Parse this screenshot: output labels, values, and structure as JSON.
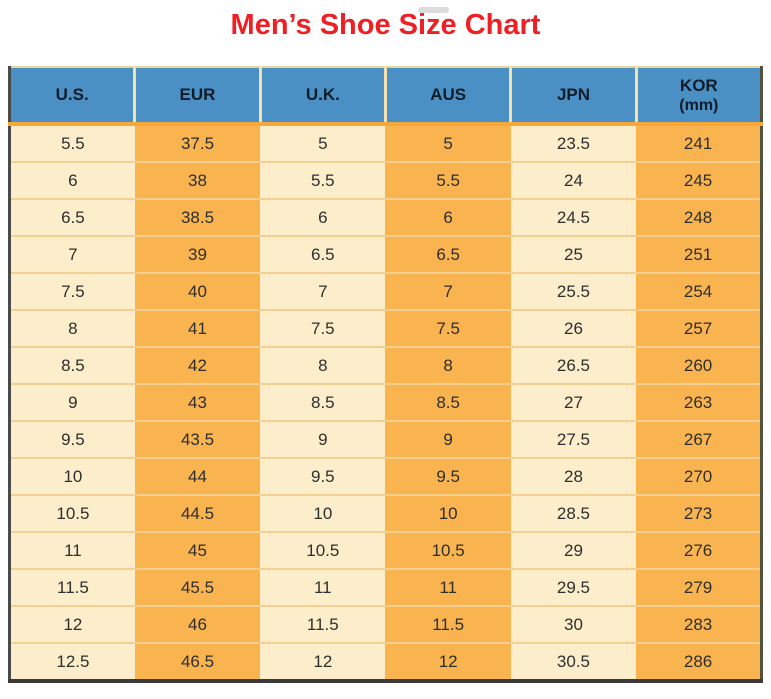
{
  "title": {
    "text": "Men’s Shoe Size Chart"
  },
  "table": {
    "columns": [
      {
        "key": "us",
        "label": "U.S.",
        "shade": "cream"
      },
      {
        "key": "eur",
        "label": "EUR",
        "shade": "orange"
      },
      {
        "key": "uk",
        "label": "U.K.",
        "shade": "cream"
      },
      {
        "key": "aus",
        "label": "AUS",
        "shade": "orange"
      },
      {
        "key": "jpn",
        "label": "JPN",
        "shade": "cream"
      },
      {
        "key": "kor",
        "label": "KOR",
        "sublabel": "(mm)",
        "shade": "orange"
      }
    ]
  },
  "chart_data": {
    "type": "table",
    "title": "Men’s Shoe Size Chart",
    "columns": [
      "U.S.",
      "EUR",
      "U.K.",
      "AUS",
      "JPN",
      "KOR (mm)"
    ],
    "rows": [
      [
        5.5,
        37.5,
        5,
        5,
        23.5,
        241
      ],
      [
        6,
        38,
        5.5,
        5.5,
        24,
        245
      ],
      [
        6.5,
        38.5,
        6,
        6,
        24.5,
        248
      ],
      [
        7,
        39,
        6.5,
        6.5,
        25,
        251
      ],
      [
        7.5,
        40,
        7,
        7,
        25.5,
        254
      ],
      [
        8,
        41,
        7.5,
        7.5,
        26,
        257
      ],
      [
        8.5,
        42,
        8,
        8,
        26.5,
        260
      ],
      [
        9,
        43,
        8.5,
        8.5,
        27,
        263
      ],
      [
        9.5,
        43.5,
        9,
        9,
        27.5,
        267
      ],
      [
        10,
        44,
        9.5,
        9.5,
        28,
        270
      ],
      [
        10.5,
        44.5,
        10,
        10,
        28.5,
        273
      ],
      [
        11,
        45,
        10.5,
        10.5,
        29,
        276
      ],
      [
        11.5,
        45.5,
        11,
        11,
        29.5,
        279
      ],
      [
        12,
        46,
        11.5,
        11.5,
        30,
        283
      ],
      [
        12.5,
        46.5,
        12,
        12,
        30.5,
        286
      ]
    ]
  },
  "colors": {
    "title_red": "#ee2024",
    "header_blue": "#4a90c5",
    "header_text": "#101c28",
    "header_sep": "#f3e0ae",
    "header_bottom": "#f6a93a",
    "cream": "#fdeecb",
    "orange": "#f9b450",
    "row_border": "#f3cf92",
    "text_dark": "#2e2e2e",
    "outer_left": "#4a4a4a",
    "outer_right": "#52523f",
    "outer_top": "#e9d3a1",
    "outer_bottom": "#3a3a3a",
    "artifact_gray": "#d6d6d6"
  }
}
